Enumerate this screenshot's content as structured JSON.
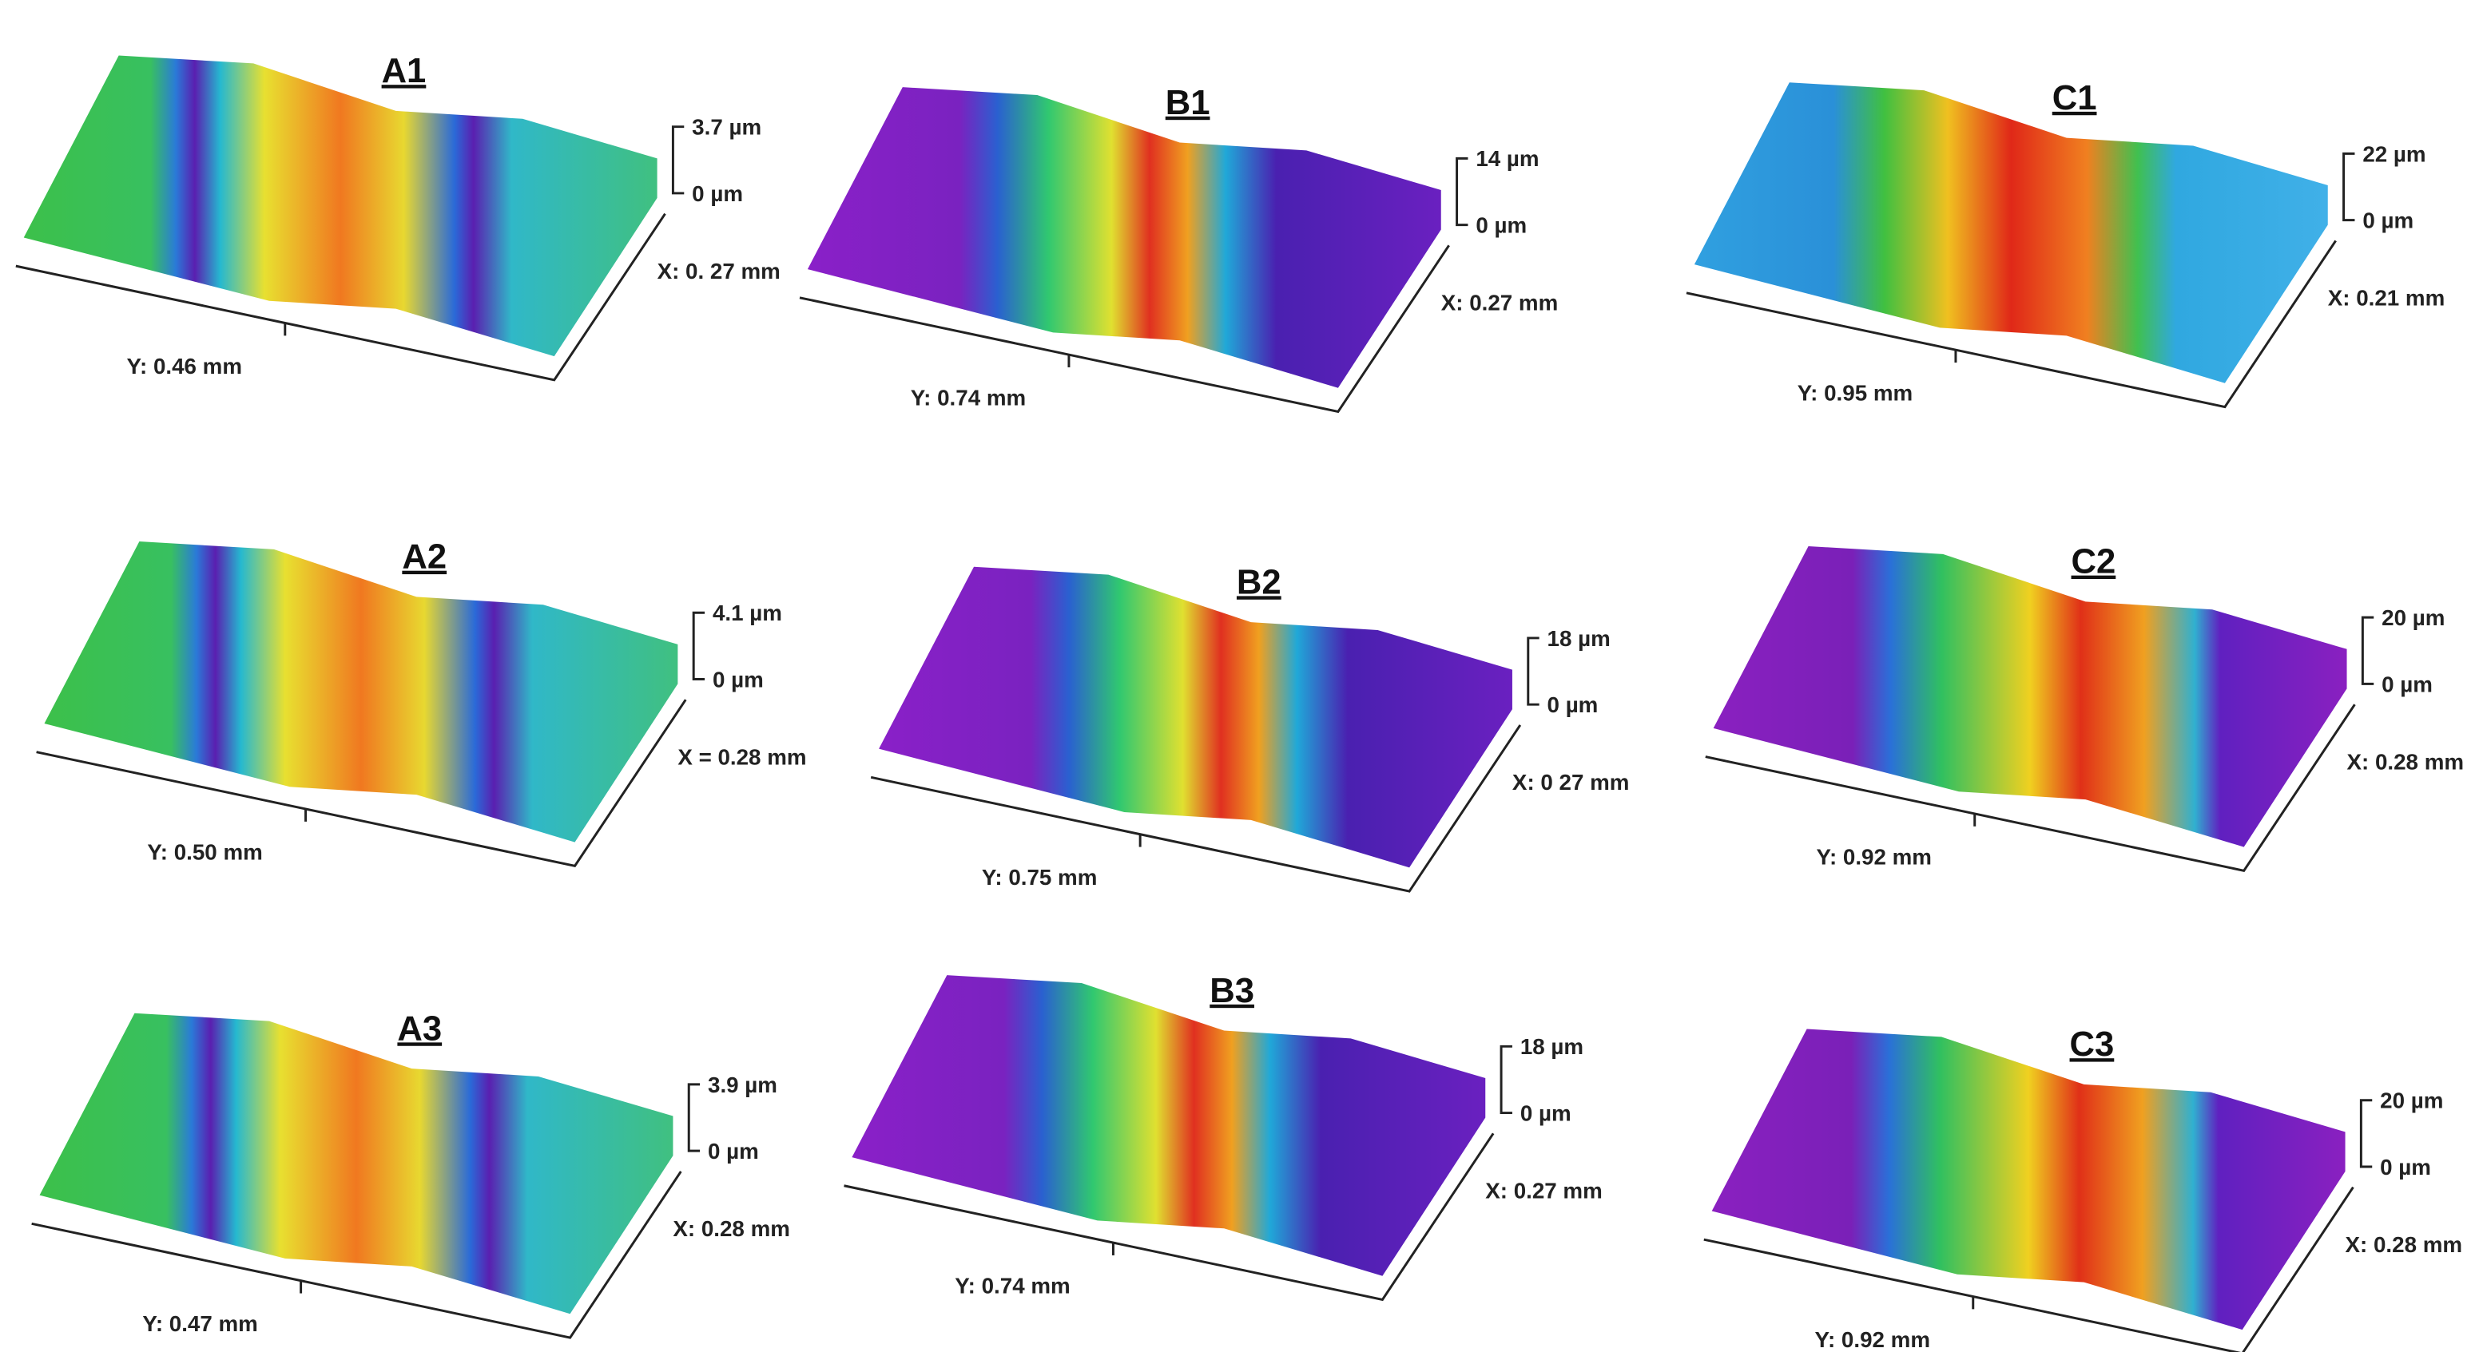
{
  "panels": [
    {
      "label": "A1",
      "z_max": "3.7 µm",
      "z_min": "0 µm",
      "x_size": "X: 0. 27 mm",
      "y_size": "Y: 0.46 mm"
    },
    {
      "label": "B1",
      "z_max": "14 µm",
      "z_min": "0 µm",
      "x_size": "X: 0.27 mm",
      "y_size": "Y: 0.74 mm"
    },
    {
      "label": "C1",
      "z_max": "22 µm",
      "z_min": "0 µm",
      "x_size": "X: 0.21 mm",
      "y_size": "Y: 0.95 mm"
    },
    {
      "label": "A2",
      "z_max": "4.1 µm",
      "z_min": "0 µm",
      "x_size": "X = 0.28 mm",
      "y_size": "Y: 0.50 mm"
    },
    {
      "label": "B2",
      "z_max": "18 µm",
      "z_min": "0 µm",
      "x_size": "X: 0 27 mm",
      "y_size": "Y: 0.75 mm"
    },
    {
      "label": "C2",
      "z_max": "20 µm",
      "z_min": "0 µm",
      "x_size": "X: 0.28 mm",
      "y_size": "Y: 0.92 mm"
    },
    {
      "label": "A3",
      "z_max": "3.9 µm",
      "z_min": "0 µm",
      "x_size": "X: 0.28 mm",
      "y_size": "Y: 0.47 mm"
    },
    {
      "label": "B3",
      "z_max": "18 µm",
      "z_min": "0 µm",
      "x_size": "X: 0.27 mm",
      "y_size": "Y: 0.74 mm"
    },
    {
      "label": "C3",
      "z_max": "20 µm",
      "z_min": "0 µm",
      "x_size": "X: 0.28 mm",
      "y_size": "Y: 0.92 mm"
    }
  ]
}
